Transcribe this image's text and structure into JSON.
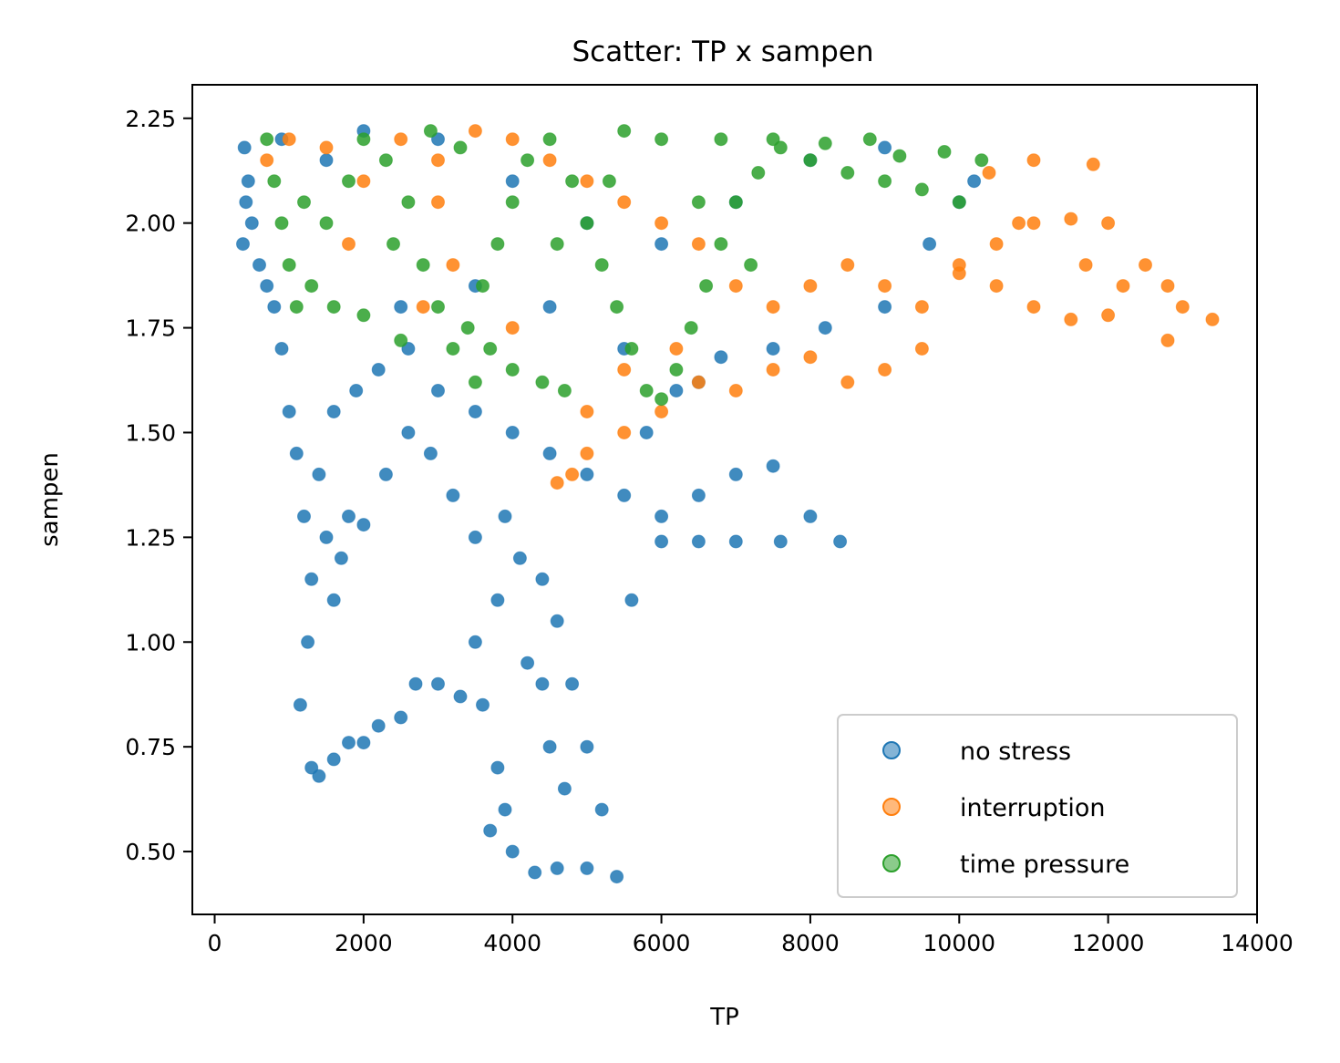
{
  "chart_data": {
    "type": "scatter",
    "title": "Scatter: TP x sampen",
    "xlabel": "TP",
    "ylabel": "sampen",
    "xlim": [
      -300,
      14000
    ],
    "ylim": [
      0.35,
      2.33
    ],
    "xticks": [
      0,
      2000,
      4000,
      6000,
      8000,
      10000,
      12000,
      14000
    ],
    "yticks": [
      0.5,
      0.75,
      1.0,
      1.25,
      1.5,
      1.75,
      2.0,
      2.25
    ],
    "xtick_labels": [
      "0",
      "2000",
      "4000",
      "6000",
      "8000",
      "10000",
      "12000",
      "14000"
    ],
    "ytick_labels": [
      "0.50",
      "0.75",
      "1.00",
      "1.25",
      "1.50",
      "1.75",
      "2.00",
      "2.25"
    ],
    "grid": false,
    "legend_position": "lower-right",
    "series": [
      {
        "name": "no stress",
        "color": "#1f77b4",
        "points": [
          [
            400,
            2.18
          ],
          [
            420,
            2.05
          ],
          [
            380,
            1.95
          ],
          [
            450,
            2.1
          ],
          [
            500,
            2.0
          ],
          [
            600,
            1.9
          ],
          [
            700,
            1.85
          ],
          [
            800,
            1.8
          ],
          [
            900,
            1.7
          ],
          [
            1000,
            1.55
          ],
          [
            1100,
            1.45
          ],
          [
            1200,
            1.3
          ],
          [
            1300,
            1.15
          ],
          [
            1250,
            1.0
          ],
          [
            1150,
            0.85
          ],
          [
            1300,
            0.7
          ],
          [
            1400,
            0.68
          ],
          [
            1600,
            0.72
          ],
          [
            1800,
            0.76
          ],
          [
            2000,
            0.76
          ],
          [
            2200,
            0.8
          ],
          [
            2500,
            0.82
          ],
          [
            2700,
            0.9
          ],
          [
            3000,
            0.9
          ],
          [
            3300,
            0.87
          ],
          [
            3600,
            0.85
          ],
          [
            3800,
            0.7
          ],
          [
            3900,
            0.6
          ],
          [
            4000,
            0.5
          ],
          [
            4300,
            0.45
          ],
          [
            4600,
            0.46
          ],
          [
            5000,
            0.46
          ],
          [
            5400,
            0.44
          ],
          [
            5200,
            0.6
          ],
          [
            5000,
            0.75
          ],
          [
            4800,
            0.9
          ],
          [
            4600,
            1.05
          ],
          [
            4400,
            1.15
          ],
          [
            4100,
            1.2
          ],
          [
            3800,
            1.1
          ],
          [
            3500,
            1.25
          ],
          [
            3200,
            1.35
          ],
          [
            2900,
            1.45
          ],
          [
            2600,
            1.5
          ],
          [
            2300,
            1.4
          ],
          [
            2000,
            1.28
          ],
          [
            1800,
            1.3
          ],
          [
            1700,
            1.2
          ],
          [
            1600,
            1.1
          ],
          [
            1500,
            1.25
          ],
          [
            1400,
            1.4
          ],
          [
            1600,
            1.55
          ],
          [
            1900,
            1.6
          ],
          [
            2200,
            1.65
          ],
          [
            2600,
            1.7
          ],
          [
            3000,
            1.6
          ],
          [
            3500,
            1.55
          ],
          [
            4000,
            1.5
          ],
          [
            4500,
            1.45
          ],
          [
            5000,
            1.4
          ],
          [
            5500,
            1.35
          ],
          [
            6000,
            1.3
          ],
          [
            6500,
            1.35
          ],
          [
            7000,
            1.4
          ],
          [
            7500,
            1.42
          ],
          [
            8000,
            1.3
          ],
          [
            8400,
            1.24
          ],
          [
            7600,
            1.24
          ],
          [
            7000,
            1.24
          ],
          [
            6500,
            1.24
          ],
          [
            6000,
            1.24
          ],
          [
            5800,
            1.5
          ],
          [
            6200,
            1.6
          ],
          [
            6800,
            1.68
          ],
          [
            7500,
            1.7
          ],
          [
            8200,
            1.75
          ],
          [
            9000,
            1.8
          ],
          [
            9600,
            1.95
          ],
          [
            10000,
            2.05
          ],
          [
            10200,
            2.1
          ],
          [
            9000,
            2.18
          ],
          [
            8000,
            2.15
          ],
          [
            7000,
            2.05
          ],
          [
            6000,
            1.95
          ],
          [
            5000,
            2.0
          ],
          [
            4000,
            2.1
          ],
          [
            3000,
            2.2
          ],
          [
            2000,
            2.22
          ],
          [
            1500,
            2.15
          ],
          [
            900,
            2.2
          ],
          [
            2500,
            1.8
          ],
          [
            3500,
            1.85
          ],
          [
            4500,
            1.8
          ],
          [
            5500,
            1.7
          ],
          [
            6500,
            1.62
          ],
          [
            4200,
            0.95
          ],
          [
            4500,
            0.75
          ],
          [
            4700,
            0.65
          ],
          [
            3700,
            0.55
          ],
          [
            3500,
            1.0
          ],
          [
            3900,
            1.3
          ],
          [
            4400,
            0.9
          ],
          [
            5600,
            1.1
          ]
        ]
      },
      {
        "name": "interruption",
        "color": "#ff7f0e",
        "points": [
          [
            700,
            2.15
          ],
          [
            1000,
            2.2
          ],
          [
            1500,
            2.18
          ],
          [
            2000,
            2.1
          ],
          [
            2500,
            2.2
          ],
          [
            3000,
            2.15
          ],
          [
            3500,
            2.22
          ],
          [
            4000,
            2.2
          ],
          [
            4500,
            2.15
          ],
          [
            5000,
            2.1
          ],
          [
            5500,
            2.05
          ],
          [
            6000,
            2.0
          ],
          [
            6500,
            1.95
          ],
          [
            7000,
            1.85
          ],
          [
            7500,
            1.8
          ],
          [
            8000,
            1.85
          ],
          [
            8500,
            1.9
          ],
          [
            9000,
            1.85
          ],
          [
            9500,
            1.8
          ],
          [
            10000,
            1.9
          ],
          [
            10500,
            1.95
          ],
          [
            11000,
            2.0
          ],
          [
            11500,
            2.01
          ],
          [
            12000,
            2.0
          ],
          [
            12500,
            1.9
          ],
          [
            12800,
            1.85
          ],
          [
            13000,
            1.8
          ],
          [
            13400,
            1.77
          ],
          [
            12800,
            1.72
          ],
          [
            12000,
            1.78
          ],
          [
            11500,
            1.77
          ],
          [
            11000,
            1.8
          ],
          [
            10500,
            1.85
          ],
          [
            10000,
            1.88
          ],
          [
            9500,
            1.7
          ],
          [
            9000,
            1.65
          ],
          [
            8500,
            1.62
          ],
          [
            8000,
            1.68
          ],
          [
            7500,
            1.65
          ],
          [
            7000,
            1.6
          ],
          [
            6500,
            1.62
          ],
          [
            6000,
            1.55
          ],
          [
            5500,
            1.5
          ],
          [
            5000,
            1.45
          ],
          [
            4800,
            1.4
          ],
          [
            4600,
            1.38
          ],
          [
            5000,
            1.55
          ],
          [
            5500,
            1.65
          ],
          [
            10400,
            2.12
          ],
          [
            11000,
            2.15
          ],
          [
            11800,
            2.14
          ],
          [
            10800,
            2.0
          ],
          [
            12200,
            1.85
          ],
          [
            11700,
            1.9
          ],
          [
            2800,
            1.8
          ],
          [
            3200,
            1.9
          ],
          [
            4000,
            1.75
          ],
          [
            3000,
            2.05
          ],
          [
            1800,
            1.95
          ],
          [
            6200,
            1.7
          ]
        ]
      },
      {
        "name": "time pressure",
        "color": "#2ca02c",
        "points": [
          [
            700,
            2.2
          ],
          [
            800,
            2.1
          ],
          [
            900,
            2.0
          ],
          [
            1000,
            1.9
          ],
          [
            1100,
            1.8
          ],
          [
            1300,
            1.85
          ],
          [
            1500,
            2.0
          ],
          [
            1800,
            2.1
          ],
          [
            2000,
            2.2
          ],
          [
            2300,
            2.15
          ],
          [
            2600,
            2.05
          ],
          [
            2800,
            1.9
          ],
          [
            3000,
            1.8
          ],
          [
            3200,
            1.7
          ],
          [
            3400,
            1.75
          ],
          [
            3600,
            1.85
          ],
          [
            3800,
            1.95
          ],
          [
            4000,
            2.05
          ],
          [
            4200,
            2.15
          ],
          [
            4500,
            2.2
          ],
          [
            4800,
            2.1
          ],
          [
            5000,
            2.0
          ],
          [
            5200,
            1.9
          ],
          [
            5400,
            1.8
          ],
          [
            5600,
            1.7
          ],
          [
            5800,
            1.6
          ],
          [
            6000,
            1.58
          ],
          [
            6200,
            1.65
          ],
          [
            6400,
            1.75
          ],
          [
            6600,
            1.85
          ],
          [
            6800,
            1.95
          ],
          [
            7000,
            2.05
          ],
          [
            7300,
            2.12
          ],
          [
            7600,
            2.18
          ],
          [
            8000,
            2.15
          ],
          [
            8500,
            2.12
          ],
          [
            9000,
            2.1
          ],
          [
            9500,
            2.08
          ],
          [
            10000,
            2.05
          ],
          [
            10300,
            2.15
          ],
          [
            9800,
            2.17
          ],
          [
            9200,
            2.16
          ],
          [
            8800,
            2.2
          ],
          [
            8200,
            2.19
          ],
          [
            7500,
            2.2
          ],
          [
            6800,
            2.2
          ],
          [
            6000,
            2.2
          ],
          [
            5500,
            2.22
          ],
          [
            4700,
            1.6
          ],
          [
            4400,
            1.62
          ],
          [
            4000,
            1.65
          ],
          [
            3700,
            1.7
          ],
          [
            3500,
            1.62
          ],
          [
            2500,
            1.72
          ],
          [
            2000,
            1.78
          ],
          [
            1600,
            1.8
          ],
          [
            1200,
            2.05
          ],
          [
            2400,
            1.95
          ],
          [
            4600,
            1.95
          ],
          [
            7200,
            1.9
          ],
          [
            5300,
            2.1
          ],
          [
            6500,
            2.05
          ],
          [
            3300,
            2.18
          ],
          [
            2900,
            2.22
          ]
        ]
      }
    ]
  }
}
